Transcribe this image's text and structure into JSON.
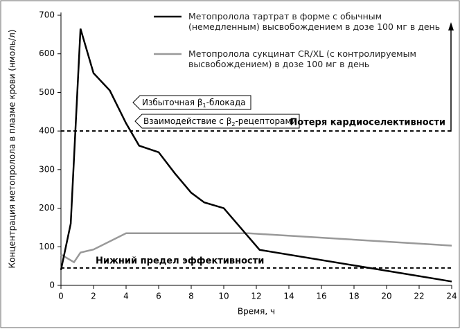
{
  "chart_data": {
    "type": "line",
    "xlabel": "Время, ч",
    "ylabel": "Концентрация метопролола в плазме крови (нмоль/л)",
    "xlim": [
      0,
      24
    ],
    "xticks": [
      0,
      2,
      4,
      6,
      8,
      10,
      12,
      14,
      16,
      18,
      20,
      22,
      24
    ],
    "ylim": [
      0,
      700
    ],
    "yticks": [
      0,
      100,
      200,
      300,
      400,
      500,
      600,
      700
    ],
    "series": [
      {
        "name": "Метопролола тартрат в форме с обычным (немедленным) высвобождением в дозе 100 мг в день",
        "color": "#000000",
        "x": [
          0,
          0.6,
          1.2,
          2,
          3,
          4,
          4.8,
          6,
          7,
          8,
          8.8,
          10,
          12.2,
          24
        ],
        "values": [
          40,
          160,
          665,
          550,
          505,
          420,
          362,
          345,
          290,
          240,
          215,
          200,
          92,
          10
        ]
      },
      {
        "name": "Метопролола сукцинат CR/XL (с контролируемым высвобождением) в дозе 100 мг в день",
        "color": "#999999",
        "x": [
          0,
          0.8,
          1.2,
          2,
          4,
          11.5,
          24
        ],
        "values": [
          80,
          60,
          85,
          93,
          135,
          135,
          103
        ]
      }
    ],
    "reference_lines": [
      {
        "value": 400,
        "label": "Потеря кардиоселективности"
      },
      {
        "value": 45,
        "label": "Нижний предел эффективности"
      }
    ],
    "annotations": [
      {
        "before": "Избыточная β",
        "sub": "1",
        "after": "-блокада"
      },
      {
        "before": "Взаимодействие с β",
        "sub": "2",
        "after": "-рецепторами"
      }
    ]
  }
}
